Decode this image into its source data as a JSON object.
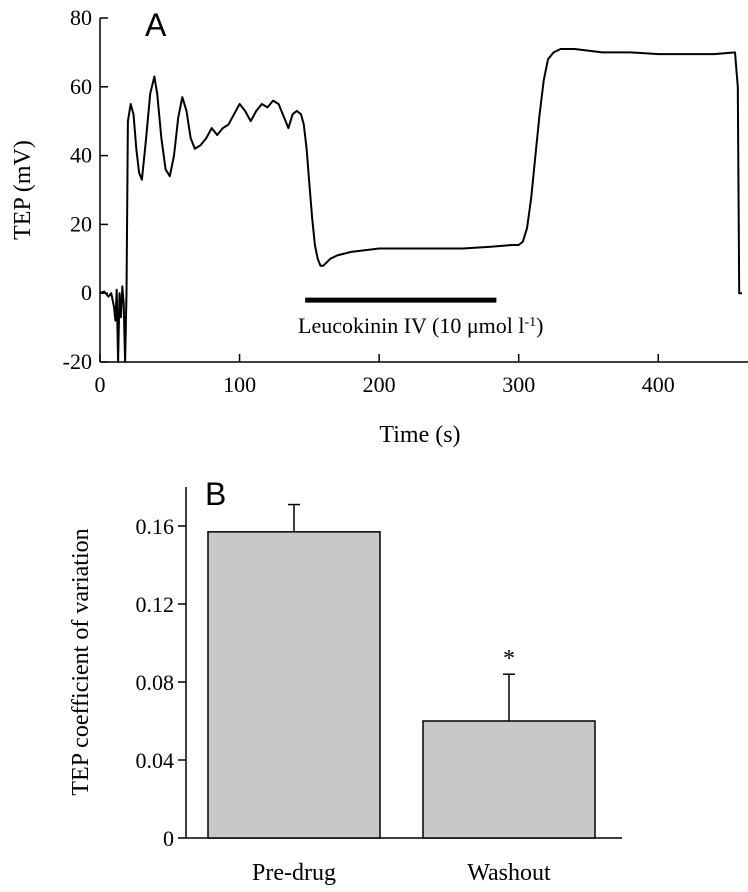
{
  "chart_data": [
    {
      "type": "line",
      "panel_label": "A",
      "xlabel": "Time (s)",
      "ylabel": "TEP (mV)",
      "xlim": [
        0,
        460
      ],
      "ylim": [
        -20,
        80
      ],
      "x_ticks": [
        0,
        100,
        200,
        300,
        400
      ],
      "y_ticks": [
        -20,
        0,
        20,
        40,
        60,
        80
      ],
      "series": [
        {
          "points": [
            [
              0,
              0
            ],
            [
              3,
              0.5
            ],
            [
              6,
              -1
            ],
            [
              8,
              0
            ],
            [
              10,
              -4
            ],
            [
              11,
              -8
            ],
            [
              12,
              1
            ],
            [
              13,
              -20
            ],
            [
              14,
              0
            ],
            [
              15,
              -7
            ],
            [
              16,
              2
            ],
            [
              17,
              -3
            ],
            [
              18,
              -20
            ],
            [
              19,
              0
            ],
            [
              20,
              50
            ],
            [
              22,
              55
            ],
            [
              24,
              52
            ],
            [
              26,
              42
            ],
            [
              28,
              35
            ],
            [
              30,
              33
            ],
            [
              33,
              45
            ],
            [
              36,
              58
            ],
            [
              39,
              63
            ],
            [
              41,
              58
            ],
            [
              44,
              45
            ],
            [
              47,
              36
            ],
            [
              50,
              34
            ],
            [
              53,
              40
            ],
            [
              56,
              51
            ],
            [
              59,
              57
            ],
            [
              62,
              53
            ],
            [
              65,
              45
            ],
            [
              68,
              42
            ],
            [
              72,
              43
            ],
            [
              76,
              45
            ],
            [
              80,
              48
            ],
            [
              84,
              46
            ],
            [
              88,
              48
            ],
            [
              92,
              49
            ],
            [
              96,
              52
            ],
            [
              100,
              55
            ],
            [
              104,
              53
            ],
            [
              108,
              50
            ],
            [
              112,
              53
            ],
            [
              116,
              55
            ],
            [
              120,
              54
            ],
            [
              124,
              56
            ],
            [
              128,
              55
            ],
            [
              132,
              51
            ],
            [
              135,
              48
            ],
            [
              138,
              52
            ],
            [
              141,
              53
            ],
            [
              144,
              52
            ],
            [
              146,
              49
            ],
            [
              148,
              42
            ],
            [
              150,
              32
            ],
            [
              152,
              22
            ],
            [
              154,
              14
            ],
            [
              156,
              10
            ],
            [
              158,
              8
            ],
            [
              160,
              8
            ],
            [
              165,
              10
            ],
            [
              170,
              11
            ],
            [
              180,
              12
            ],
            [
              200,
              13
            ],
            [
              220,
              13
            ],
            [
              240,
              13
            ],
            [
              260,
              13
            ],
            [
              280,
              13.5
            ],
            [
              295,
              14
            ],
            [
              300,
              14
            ],
            [
              303,
              15
            ],
            [
              306,
              19
            ],
            [
              309,
              28
            ],
            [
              312,
              40
            ],
            [
              315,
              52
            ],
            [
              318,
              62
            ],
            [
              321,
              68
            ],
            [
              325,
              70
            ],
            [
              330,
              71
            ],
            [
              340,
              71
            ],
            [
              360,
              70
            ],
            [
              380,
              70
            ],
            [
              400,
              69.5
            ],
            [
              420,
              69.5
            ],
            [
              440,
              69.5
            ],
            [
              455,
              70
            ],
            [
              457,
              60
            ],
            [
              458,
              0
            ],
            [
              460,
              0
            ]
          ]
        }
      ],
      "annotation": {
        "text": "Leucokinin IV (10 μmol l",
        "sup": "-1",
        "suffix": ")",
        "x_start": 147,
        "x_end": 284
      }
    },
    {
      "type": "bar",
      "panel_label": "B",
      "xlabel": "",
      "ylabel": "TEP coefficient of variation",
      "ylim": [
        0,
        0.18
      ],
      "y_ticks": [
        0,
        0.04,
        0.08,
        0.12,
        0.16
      ],
      "y_tick_labels": [
        "0",
        "0.04",
        "0.08",
        "0.12",
        "0.16"
      ],
      "categories": [
        "Pre-drug",
        "Washout"
      ],
      "values": [
        0.157,
        0.06
      ],
      "errors": [
        0.014,
        0.024
      ],
      "significance": [
        "",
        "*"
      ]
    }
  ]
}
